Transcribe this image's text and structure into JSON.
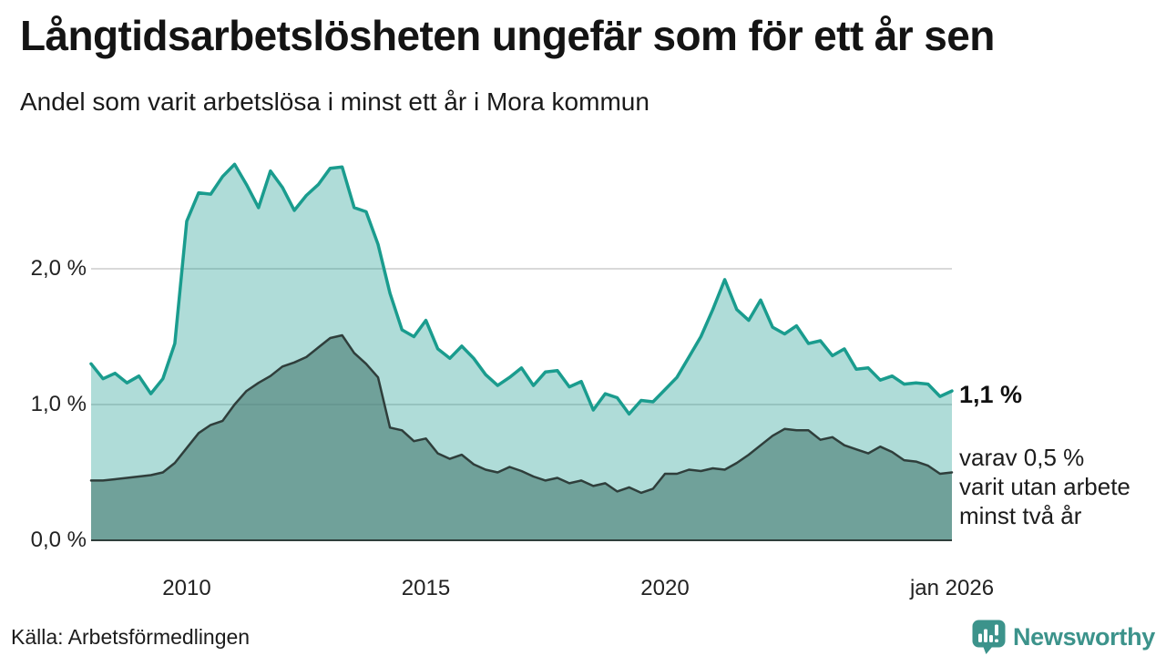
{
  "header": {
    "title": "Långtidsarbetslösheten ungefär som för ett år sen",
    "subtitle": "Andel som varit arbetslösa i minst ett år i Mora kommun"
  },
  "chart_data": {
    "type": "area",
    "title": "Långtidsarbetslösheten ungefär som för ett år sen",
    "subtitle": "Andel som varit arbetslösa i minst ett år i Mora kommun",
    "unit": "%",
    "x_domain": [
      2008,
      2026
    ],
    "ylim": [
      0,
      2.9
    ],
    "grid": "horizontal",
    "legend_position": "none",
    "yticks": [
      {
        "value": 0.0,
        "label": "0,0 %"
      },
      {
        "value": 1.0,
        "label": "1,0 %"
      },
      {
        "value": 2.0,
        "label": "2,0 %"
      }
    ],
    "xticks": [
      {
        "value": 2010,
        "label": "2010"
      },
      {
        "value": 2015,
        "label": "2015"
      },
      {
        "value": 2020,
        "label": "2020"
      },
      {
        "value": 2026,
        "label": "jan 2026"
      }
    ],
    "series": [
      {
        "name": "arbetslösa minst ett år",
        "line_color": "#1a9c8e",
        "fill_color": "rgba(26,156,142,0.35)",
        "line_width": 3.5,
        "points": [
          [
            2008.0,
            1.3
          ],
          [
            2008.25,
            1.19
          ],
          [
            2008.5,
            1.23
          ],
          [
            2008.75,
            1.16
          ],
          [
            2009.0,
            1.21
          ],
          [
            2009.25,
            1.08
          ],
          [
            2009.5,
            1.19
          ],
          [
            2009.75,
            1.45
          ],
          [
            2010.0,
            2.35
          ],
          [
            2010.25,
            2.56
          ],
          [
            2010.5,
            2.55
          ],
          [
            2010.75,
            2.68
          ],
          [
            2011.0,
            2.77
          ],
          [
            2011.25,
            2.62
          ],
          [
            2011.5,
            2.45
          ],
          [
            2011.75,
            2.72
          ],
          [
            2012.0,
            2.6
          ],
          [
            2012.25,
            2.43
          ],
          [
            2012.5,
            2.54
          ],
          [
            2012.75,
            2.62
          ],
          [
            2013.0,
            2.74
          ],
          [
            2013.25,
            2.75
          ],
          [
            2013.5,
            2.45
          ],
          [
            2013.75,
            2.42
          ],
          [
            2014.0,
            2.18
          ],
          [
            2014.25,
            1.82
          ],
          [
            2014.5,
            1.55
          ],
          [
            2014.75,
            1.5
          ],
          [
            2015.0,
            1.62
          ],
          [
            2015.25,
            1.41
          ],
          [
            2015.5,
            1.34
          ],
          [
            2015.75,
            1.43
          ],
          [
            2016.0,
            1.34
          ],
          [
            2016.25,
            1.22
          ],
          [
            2016.5,
            1.14
          ],
          [
            2016.75,
            1.2
          ],
          [
            2017.0,
            1.27
          ],
          [
            2017.25,
            1.14
          ],
          [
            2017.5,
            1.24
          ],
          [
            2017.75,
            1.25
          ],
          [
            2018.0,
            1.13
          ],
          [
            2018.25,
            1.17
          ],
          [
            2018.5,
            0.96
          ],
          [
            2018.75,
            1.08
          ],
          [
            2019.0,
            1.05
          ],
          [
            2019.25,
            0.93
          ],
          [
            2019.5,
            1.03
          ],
          [
            2019.75,
            1.02
          ],
          [
            2020.0,
            1.11
          ],
          [
            2020.25,
            1.2
          ],
          [
            2020.5,
            1.35
          ],
          [
            2020.75,
            1.5
          ],
          [
            2021.0,
            1.7
          ],
          [
            2021.25,
            1.92
          ],
          [
            2021.5,
            1.7
          ],
          [
            2021.75,
            1.62
          ],
          [
            2022.0,
            1.77
          ],
          [
            2022.25,
            1.57
          ],
          [
            2022.5,
            1.52
          ],
          [
            2022.75,
            1.58
          ],
          [
            2023.0,
            1.45
          ],
          [
            2023.25,
            1.47
          ],
          [
            2023.5,
            1.36
          ],
          [
            2023.75,
            1.41
          ],
          [
            2024.0,
            1.26
          ],
          [
            2024.25,
            1.27
          ],
          [
            2024.5,
            1.18
          ],
          [
            2024.75,
            1.21
          ],
          [
            2025.0,
            1.15
          ],
          [
            2025.25,
            1.16
          ],
          [
            2025.5,
            1.15
          ],
          [
            2025.75,
            1.06
          ],
          [
            2026.0,
            1.1
          ]
        ]
      },
      {
        "name": "varav arbetslösa minst två år",
        "line_color": "#2f3e3b",
        "fill_color": "rgba(74,125,116,0.62)",
        "line_width": 2.5,
        "points": [
          [
            2008.0,
            0.44
          ],
          [
            2008.25,
            0.44
          ],
          [
            2008.5,
            0.45
          ],
          [
            2008.75,
            0.46
          ],
          [
            2009.0,
            0.47
          ],
          [
            2009.25,
            0.48
          ],
          [
            2009.5,
            0.5
          ],
          [
            2009.75,
            0.57
          ],
          [
            2010.0,
            0.68
          ],
          [
            2010.25,
            0.79
          ],
          [
            2010.5,
            0.85
          ],
          [
            2010.75,
            0.88
          ],
          [
            2011.0,
            1.0
          ],
          [
            2011.25,
            1.1
          ],
          [
            2011.5,
            1.16
          ],
          [
            2011.75,
            1.21
          ],
          [
            2012.0,
            1.28
          ],
          [
            2012.25,
            1.31
          ],
          [
            2012.5,
            1.35
          ],
          [
            2012.75,
            1.42
          ],
          [
            2013.0,
            1.49
          ],
          [
            2013.25,
            1.51
          ],
          [
            2013.5,
            1.38
          ],
          [
            2013.75,
            1.3
          ],
          [
            2014.0,
            1.2
          ],
          [
            2014.25,
            0.83
          ],
          [
            2014.5,
            0.81
          ],
          [
            2014.75,
            0.73
          ],
          [
            2015.0,
            0.75
          ],
          [
            2015.25,
            0.64
          ],
          [
            2015.5,
            0.6
          ],
          [
            2015.75,
            0.63
          ],
          [
            2016.0,
            0.56
          ],
          [
            2016.25,
            0.52
          ],
          [
            2016.5,
            0.5
          ],
          [
            2016.75,
            0.54
          ],
          [
            2017.0,
            0.51
          ],
          [
            2017.25,
            0.47
          ],
          [
            2017.5,
            0.44
          ],
          [
            2017.75,
            0.46
          ],
          [
            2018.0,
            0.42
          ],
          [
            2018.25,
            0.44
          ],
          [
            2018.5,
            0.4
          ],
          [
            2018.75,
            0.42
          ],
          [
            2019.0,
            0.36
          ],
          [
            2019.25,
            0.39
          ],
          [
            2019.5,
            0.35
          ],
          [
            2019.75,
            0.38
          ],
          [
            2020.0,
            0.49
          ],
          [
            2020.25,
            0.49
          ],
          [
            2020.5,
            0.52
          ],
          [
            2020.75,
            0.51
          ],
          [
            2021.0,
            0.53
          ],
          [
            2021.25,
            0.52
          ],
          [
            2021.5,
            0.57
          ],
          [
            2021.75,
            0.63
          ],
          [
            2022.0,
            0.7
          ],
          [
            2022.25,
            0.77
          ],
          [
            2022.5,
            0.82
          ],
          [
            2022.75,
            0.81
          ],
          [
            2023.0,
            0.81
          ],
          [
            2023.25,
            0.74
          ],
          [
            2023.5,
            0.76
          ],
          [
            2023.75,
            0.7
          ],
          [
            2024.0,
            0.67
          ],
          [
            2024.25,
            0.64
          ],
          [
            2024.5,
            0.69
          ],
          [
            2024.75,
            0.65
          ],
          [
            2025.0,
            0.59
          ],
          [
            2025.25,
            0.58
          ],
          [
            2025.5,
            0.55
          ],
          [
            2025.75,
            0.49
          ],
          [
            2026.0,
            0.5
          ]
        ]
      }
    ],
    "annotations": {
      "end_value": "1,1 %",
      "subseries_lines": [
        "varav 0,5 %",
        "varit utan arbete",
        "minst två år"
      ]
    },
    "colors": {
      "gridline": "#d9d9d9",
      "baseline": "#2f3e3b"
    }
  },
  "footer": {
    "source": "Källa: Arbetsförmedlingen",
    "brand": "Newsworthy",
    "brand_color": "#3c938b"
  }
}
